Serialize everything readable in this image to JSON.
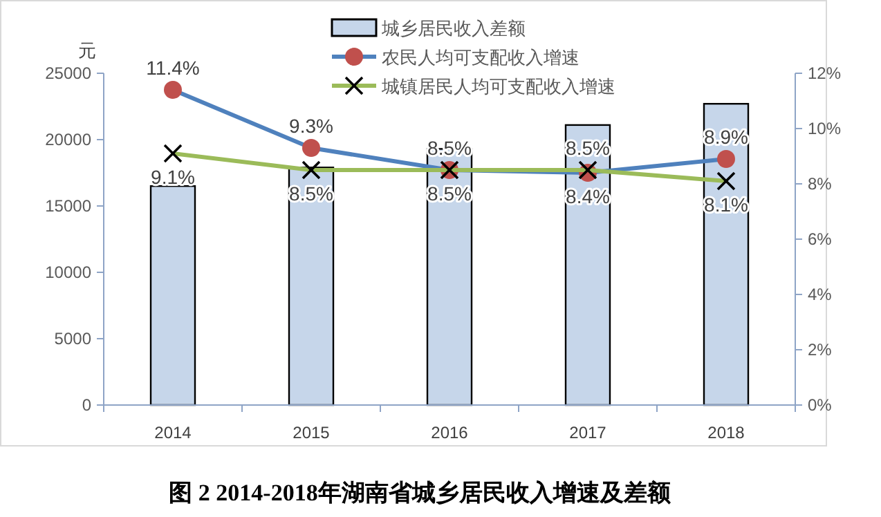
{
  "chart_data": {
    "type": "bar",
    "title": "图 2 2014-2018年湖南省城乡居民收入增速及差额",
    "ylabel": "元",
    "categories": [
      "2014",
      "2015",
      "2016",
      "2017",
      "2018"
    ],
    "series": [
      {
        "name": "城乡居民收入差额",
        "color": "#c6d6ea",
        "values": [
          16500,
          17900,
          19300,
          21100,
          22700
        ]
      },
      {
        "name": "农民人均可支配收入增速",
        "type": "line",
        "axis": "y2",
        "color": "#4f81bd",
        "marker": "circle",
        "colors": [
          "#c0504d",
          "#c0504d",
          "#c0504d",
          "#c0504d",
          "#c0504d"
        ],
        "values": [
          11.4,
          9.3,
          8.5,
          8.4,
          8.9
        ],
        "value_labels": [
          "11.4%",
          "9.3%",
          "8.5%",
          "8.4%",
          "8.9%"
        ]
      },
      {
        "name": "城镇居民人均可支配收入增速",
        "type": "line",
        "axis": "y2",
        "color": "#9bbb59",
        "marker": "cross",
        "colors": [
          "#000000",
          "#000000",
          "#000000",
          "#000000",
          "#000000"
        ],
        "values": [
          9.1,
          8.5,
          8.5,
          8.5,
          8.1
        ],
        "value_labels": [
          "9.1%",
          "8.5%",
          "8.5%",
          "8.5%",
          "8.1%"
        ]
      }
    ],
    "ylim": [
      0,
      25000
    ],
    "yticks": [
      0,
      5000,
      10000,
      15000,
      20000,
      25000
    ],
    "y2lim": [
      0,
      12
    ],
    "y2ticks": [
      {
        "value": 0,
        "label": "0%"
      },
      {
        "value": 2,
        "label": "2%"
      },
      {
        "value": 4,
        "label": "4%"
      },
      {
        "value": 6,
        "label": "6%"
      },
      {
        "value": 8,
        "label": "8%"
      },
      {
        "value": 10,
        "label": "10%"
      },
      {
        "value": 12,
        "label": "12%"
      }
    ],
    "legend": "top",
    "grid": false
  }
}
